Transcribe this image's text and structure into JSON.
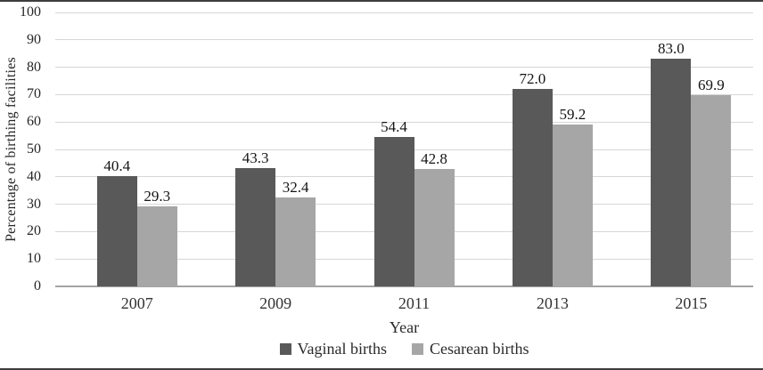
{
  "chart_data": {
    "type": "bar",
    "title": "",
    "categories": [
      "2007",
      "2009",
      "2011",
      "2013",
      "2015"
    ],
    "series": [
      {
        "name": "Vaginal births",
        "color": "#595959",
        "values": [
          40.4,
          43.3,
          54.4,
          72.0,
          83.0
        ]
      },
      {
        "name": "Cesarean births",
        "color": "#a6a6a6",
        "values": [
          29.3,
          32.4,
          42.8,
          59.2,
          69.9
        ]
      }
    ],
    "xlabel": "Year",
    "ylabel": "Percentage of birthing facilities",
    "ylim": [
      0,
      100
    ],
    "yticks": [
      0,
      10,
      20,
      30,
      40,
      50,
      60,
      70,
      80,
      90,
      100
    ],
    "grid": true,
    "legend_position": "bottom",
    "value_labels": true,
    "value_label_decimals": 1
  },
  "colors": {
    "gridline": "#d6d6d6",
    "baseline": "#a3a3a3",
    "background": "#ffffff",
    "text": "#262626"
  }
}
